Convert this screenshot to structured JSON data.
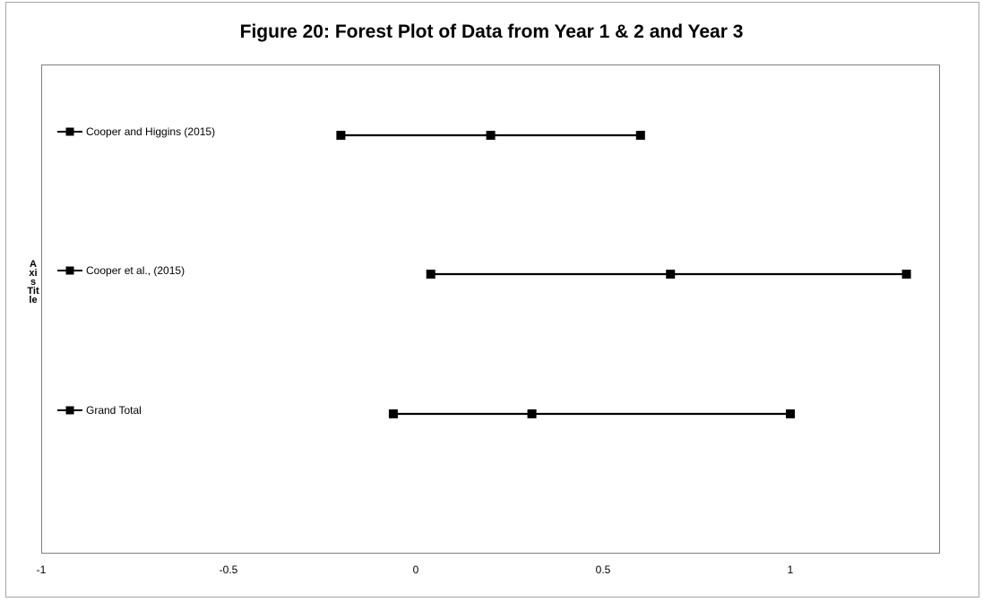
{
  "chart_data": {
    "type": "scatter",
    "title": "Figure 20: Forest Plot of Data from Year 1 & 2 and Year 3",
    "ylabel": "Axis Title",
    "xlabel": "",
    "xlim": [
      -1,
      1.4
    ],
    "x_ticks": [
      {
        "value": -1,
        "label": "-1"
      },
      {
        "value": -0.5,
        "label": "-0.5"
      },
      {
        "value": 0,
        "label": "0"
      },
      {
        "value": 0.5,
        "label": "0.5"
      },
      {
        "value": 1,
        "label": "1"
      }
    ],
    "grid": false,
    "legend_position": "left",
    "series": [
      {
        "name": "Cooper and Higgins (2015)",
        "values": [
          -0.2,
          0.2,
          0.6
        ]
      },
      {
        "name": "Cooper et al., (2015)",
        "values": [
          0.04,
          0.68,
          1.31
        ]
      },
      {
        "name": "Grand Total",
        "values": [
          -0.06,
          0.31,
          1.0
        ]
      }
    ],
    "colors": {
      "line": "#000000",
      "marker": "#000000",
      "border": "#7f7f7f"
    }
  }
}
